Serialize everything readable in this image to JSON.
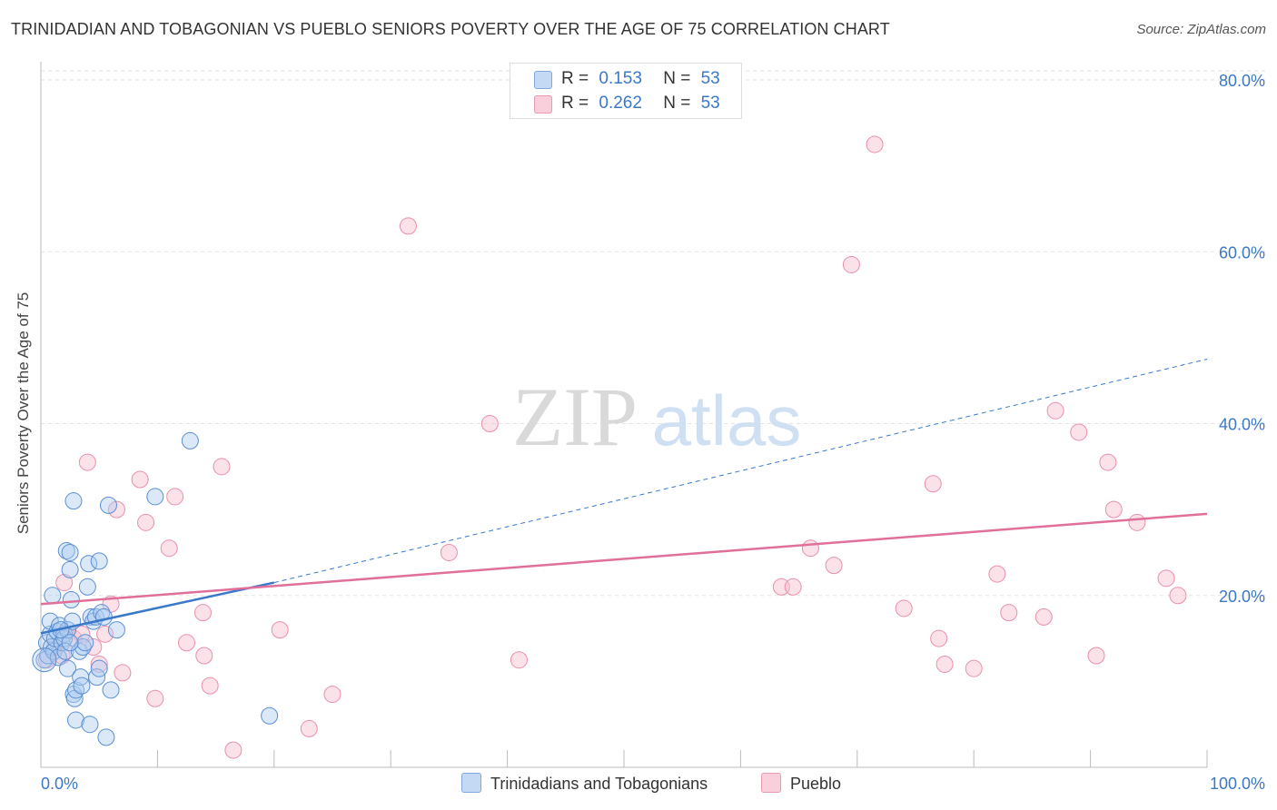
{
  "title": "TRINIDADIAN AND TOBAGONIAN VS PUEBLO SENIORS POVERTY OVER THE AGE OF 75 CORRELATION CHART",
  "source": "Source: ZipAtlas.com",
  "watermark": {
    "zip": "ZIP",
    "atlas": "atlas"
  },
  "legend": {
    "r_label": "R =",
    "n_label": "N =",
    "series1": {
      "r": "0.153",
      "n": "53"
    },
    "series2": {
      "r": "0.262",
      "n": "53"
    }
  },
  "colors": {
    "blue": "#3a78c9",
    "pink": "#e0709a",
    "blue_fill": "#aecbf0",
    "pink_fill": "#f6bccd"
  },
  "chart_data": {
    "type": "scatter",
    "title": "TRINIDADIAN AND TOBAGONIAN VS PUEBLO SENIORS POVERTY OVER THE AGE OF 75 CORRELATION CHART",
    "xlabel": "",
    "ylabel": "Seniors Poverty Over the Age of 75",
    "xlim": [
      0,
      100
    ],
    "ylim": [
      0,
      80
    ],
    "x_tick_labels": [
      "0.0%",
      "100.0%"
    ],
    "y_ticks": [
      20,
      40,
      60,
      80
    ],
    "y_tick_labels": [
      "20.0%",
      "40.0%",
      "60.0%",
      "80.0%"
    ],
    "series": [
      {
        "name": "Trinidadians and Tobagonians",
        "color": "#3a78c9",
        "points": [
          [
            0.3,
            12.5
          ],
          [
            0.5,
            14.5
          ],
          [
            0.6,
            13.0
          ],
          [
            0.8,
            15.5
          ],
          [
            0.8,
            17.0
          ],
          [
            0.9,
            14.0
          ],
          [
            1.0,
            20.0
          ],
          [
            1.1,
            13.5
          ],
          [
            1.2,
            15.0
          ],
          [
            1.4,
            15.8
          ],
          [
            1.5,
            12.8
          ],
          [
            1.6,
            16.5
          ],
          [
            1.8,
            14.5
          ],
          [
            2.0,
            15.5
          ],
          [
            2.0,
            15.0
          ],
          [
            2.1,
            13.5
          ],
          [
            2.2,
            25.2
          ],
          [
            2.3,
            16.0
          ],
          [
            2.3,
            11.5
          ],
          [
            2.5,
            25.0
          ],
          [
            2.5,
            23.0
          ],
          [
            2.6,
            19.5
          ],
          [
            2.7,
            17.0
          ],
          [
            2.8,
            31.0
          ],
          [
            2.8,
            8.5
          ],
          [
            2.9,
            8.0
          ],
          [
            3.0,
            9.0
          ],
          [
            3.0,
            5.5
          ],
          [
            3.3,
            13.5
          ],
          [
            3.4,
            10.5
          ],
          [
            3.5,
            9.5
          ],
          [
            3.6,
            14.0
          ],
          [
            3.8,
            14.5
          ],
          [
            4.0,
            21.0
          ],
          [
            4.1,
            23.7
          ],
          [
            4.2,
            5.0
          ],
          [
            4.3,
            17.5
          ],
          [
            4.5,
            17.0
          ],
          [
            4.7,
            17.5
          ],
          [
            4.8,
            10.5
          ],
          [
            5.0,
            24.0
          ],
          [
            5.0,
            11.5
          ],
          [
            5.2,
            18.0
          ],
          [
            5.4,
            17.5
          ],
          [
            5.6,
            3.5
          ],
          [
            5.8,
            30.5
          ],
          [
            6.0,
            9.0
          ],
          [
            6.5,
            16.0
          ],
          [
            9.8,
            31.5
          ],
          [
            12.8,
            38.0
          ],
          [
            19.6,
            6.0
          ],
          [
            2.5,
            14.5
          ],
          [
            1.7,
            16.0
          ]
        ],
        "trend": {
          "x": [
            0,
            20
          ],
          "y": [
            15.6,
            21.5
          ],
          "extended_to": [
            100,
            47.5
          ]
        }
      },
      {
        "name": "Pueblo",
        "color": "#e0709a",
        "points": [
          [
            0.5,
            12.5
          ],
          [
            1.2,
            14.0
          ],
          [
            1.8,
            13.0
          ],
          [
            2.0,
            21.5
          ],
          [
            2.8,
            15.0
          ],
          [
            3.5,
            15.5
          ],
          [
            4.0,
            35.5
          ],
          [
            4.5,
            14.0
          ],
          [
            5.0,
            12.0
          ],
          [
            5.5,
            15.5
          ],
          [
            6.0,
            19.0
          ],
          [
            6.5,
            30.0
          ],
          [
            7.0,
            11.0
          ],
          [
            8.5,
            33.5
          ],
          [
            9.0,
            28.5
          ],
          [
            9.8,
            8.0
          ],
          [
            11.0,
            25.5
          ],
          [
            11.5,
            31.5
          ],
          [
            12.5,
            14.5
          ],
          [
            13.9,
            18.0
          ],
          [
            14.0,
            13.0
          ],
          [
            14.5,
            9.5
          ],
          [
            15.5,
            35.0
          ],
          [
            16.5,
            2.0
          ],
          [
            20.5,
            16.0
          ],
          [
            23.0,
            4.5
          ],
          [
            25.0,
            8.5
          ],
          [
            31.5,
            63.0
          ],
          [
            35.0,
            25.0
          ],
          [
            38.5,
            40.0
          ],
          [
            41.0,
            12.5
          ],
          [
            76.5,
            33.0
          ],
          [
            63.5,
            21.0
          ],
          [
            64.5,
            21.0
          ],
          [
            66.0,
            25.5
          ],
          [
            68.0,
            23.5
          ],
          [
            69.5,
            58.5
          ],
          [
            71.5,
            72.5
          ],
          [
            74.0,
            18.5
          ],
          [
            77.0,
            15.0
          ],
          [
            77.5,
            12.0
          ],
          [
            80.0,
            11.5
          ],
          [
            82.0,
            22.5
          ],
          [
            83.0,
            18.0
          ],
          [
            86.0,
            17.5
          ],
          [
            87.0,
            41.5
          ],
          [
            89.0,
            39.0
          ],
          [
            90.5,
            13.0
          ],
          [
            91.5,
            35.5
          ],
          [
            92.0,
            30.0
          ],
          [
            94.0,
            28.5
          ],
          [
            96.5,
            22.0
          ],
          [
            97.5,
            20.0
          ]
        ],
        "trend": {
          "x": [
            0,
            100
          ],
          "y": [
            19.0,
            29.5
          ]
        }
      }
    ]
  },
  "bottom_legend": {
    "series1": "Trinidadians and Tobagonians",
    "series2": "Pueblo"
  }
}
